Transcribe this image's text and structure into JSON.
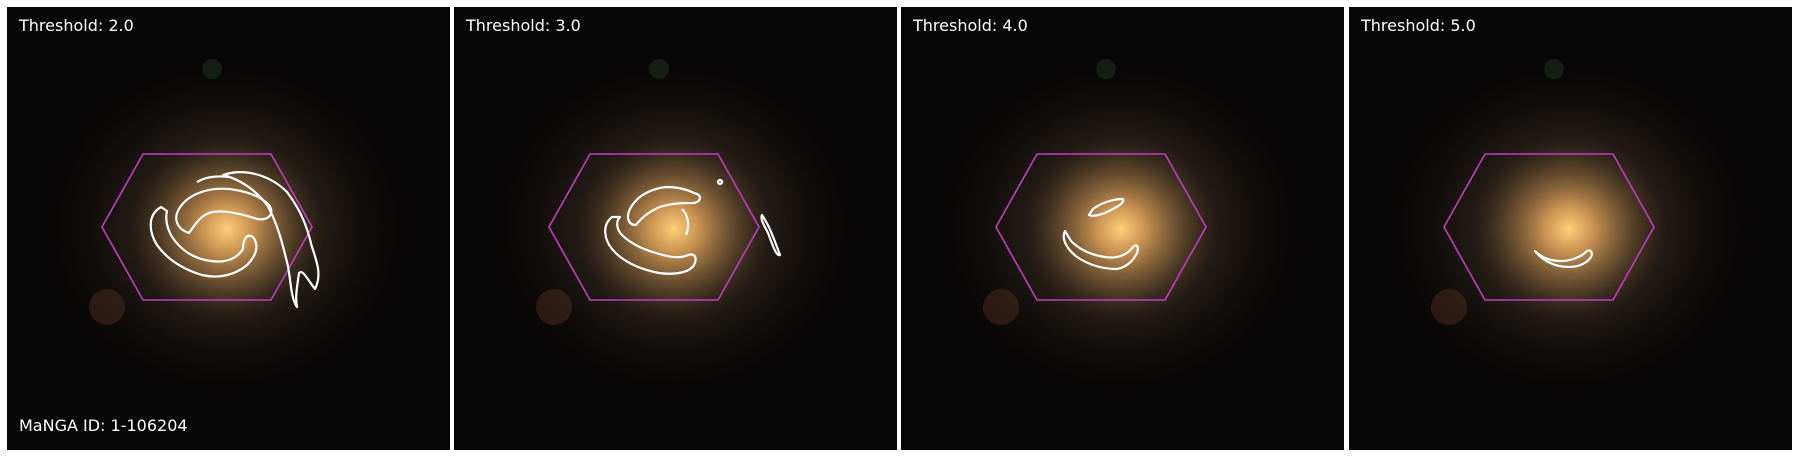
{
  "figure": {
    "galaxy_id_label": "MaNGA ID: 1-106204",
    "hexagon_color": "#c43bc4",
    "contour_color": "#ffffff",
    "panels": [
      {
        "title": "Threshold: 2.0",
        "threshold": 2.0
      },
      {
        "title": "Threshold: 3.0",
        "threshold": 3.0
      },
      {
        "title": "Threshold: 4.0",
        "threshold": 4.0
      },
      {
        "title": "Threshold: 5.0",
        "threshold": 5.0
      }
    ]
  }
}
